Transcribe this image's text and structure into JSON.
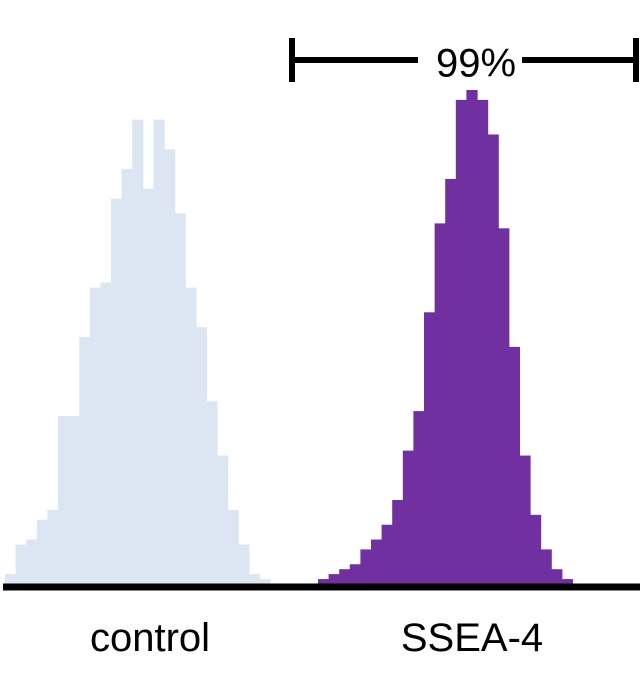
{
  "chart_data": {
    "type": "area",
    "title": "",
    "xlabel": "",
    "ylabel": "",
    "grid": false,
    "legend": "none",
    "series": [
      {
        "name": "control",
        "color": "#dce6f2",
        "values": [
          0.02,
          0.08,
          0.09,
          0.13,
          0.15,
          0.34,
          0.34,
          0.5,
          0.6,
          0.61,
          0.78,
          0.84,
          0.94,
          0.8,
          0.94,
          0.88,
          0.75,
          0.6,
          0.52,
          0.37,
          0.26,
          0.15,
          0.08,
          0.02,
          0.01
        ]
      },
      {
        "name": "SSEA-4",
        "color": "#7030a0",
        "values": [
          0.01,
          0.02,
          0.03,
          0.04,
          0.07,
          0.09,
          0.12,
          0.17,
          0.27,
          0.35,
          0.55,
          0.73,
          0.82,
          0.98,
          1.0,
          0.98,
          0.91,
          0.72,
          0.48,
          0.26,
          0.14,
          0.07,
          0.03,
          0.01
        ]
      }
    ],
    "gate": {
      "label": "99%"
    }
  },
  "labels": {
    "control": "control",
    "ssea4": "SSEA-4",
    "gate": "99%"
  }
}
